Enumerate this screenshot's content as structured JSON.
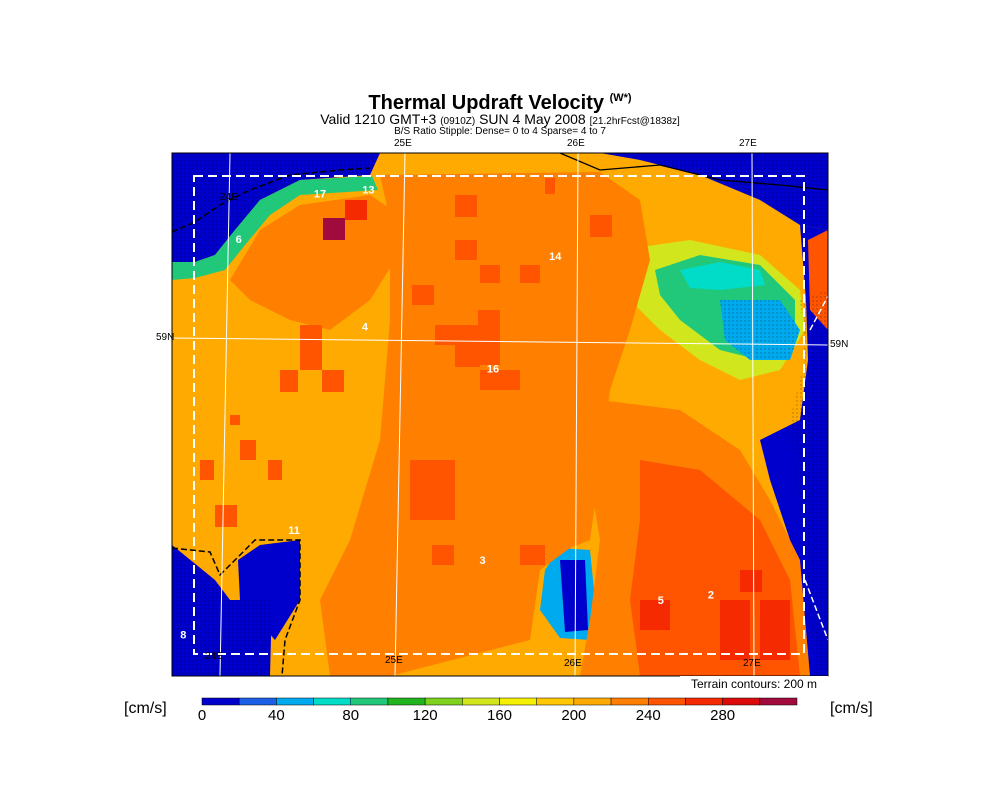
{
  "header": {
    "title": "Thermal Updraft Velocity",
    "title_symbol": "(W*)",
    "valid_prefix": "Valid 1210 GMT+3",
    "valid_small": "(0910Z)",
    "valid_date": "SUN 4 May 2008",
    "forecast": "[21.2hrFcst@1838z]",
    "stipple_note": "B/S Ratio Stipple:  Dense= 0 to 4  Sparse= 4 to 7"
  },
  "map": {
    "lon_labels_top": [
      "25E",
      "26E",
      "27E"
    ],
    "lon_labels_bottom": [
      "25E",
      "26E",
      "27E"
    ],
    "lat_label_left": "59N",
    "lat_label_right": "59N",
    "corner_labels": [
      "24E",
      "24E"
    ],
    "point_labels": [
      {
        "text": "17",
        "lon": 24.52,
        "lat": 59.75
      },
      {
        "text": "13",
        "lon": 24.8,
        "lat": 59.77
      },
      {
        "text": "6",
        "lon": 24.05,
        "lat": 59.51
      },
      {
        "text": "14",
        "lon": 25.88,
        "lat": 59.42
      },
      {
        "text": "4",
        "lon": 24.78,
        "lat": 59.05
      },
      {
        "text": "16",
        "lon": 25.52,
        "lat": 58.83
      },
      {
        "text": "11",
        "lon": 24.37,
        "lat": 57.98
      },
      {
        "text": "3",
        "lon": 25.46,
        "lat": 57.82
      },
      {
        "text": "5",
        "lon": 26.49,
        "lat": 57.61
      },
      {
        "text": "2",
        "lon": 26.78,
        "lat": 57.64
      },
      {
        "text": "8",
        "lon": 23.73,
        "lat": 57.43
      }
    ],
    "terrain_note": "Terrain contours: 200 m"
  },
  "colorbar": {
    "unit_left": "[cm/s]",
    "unit_right": "[cm/s]",
    "tick_labels": [
      "0",
      "40",
      "80",
      "120",
      "160",
      "200",
      "240",
      "280"
    ],
    "colors": [
      "#0000cc",
      "#1a5fe6",
      "#00aaee",
      "#00dcc8",
      "#22c87a",
      "#22b41e",
      "#7ed21e",
      "#d2e61e",
      "#f5f000",
      "#ffc800",
      "#ffaa00",
      "#ff7f00",
      "#ff5500",
      "#f52a00",
      "#dc0a0a",
      "#a00a3c"
    ]
  },
  "legend_levels_cm_s": [
    0,
    20,
    40,
    60,
    80,
    100,
    120,
    140,
    160,
    180,
    200,
    220,
    240,
    260,
    280,
    300
  ]
}
